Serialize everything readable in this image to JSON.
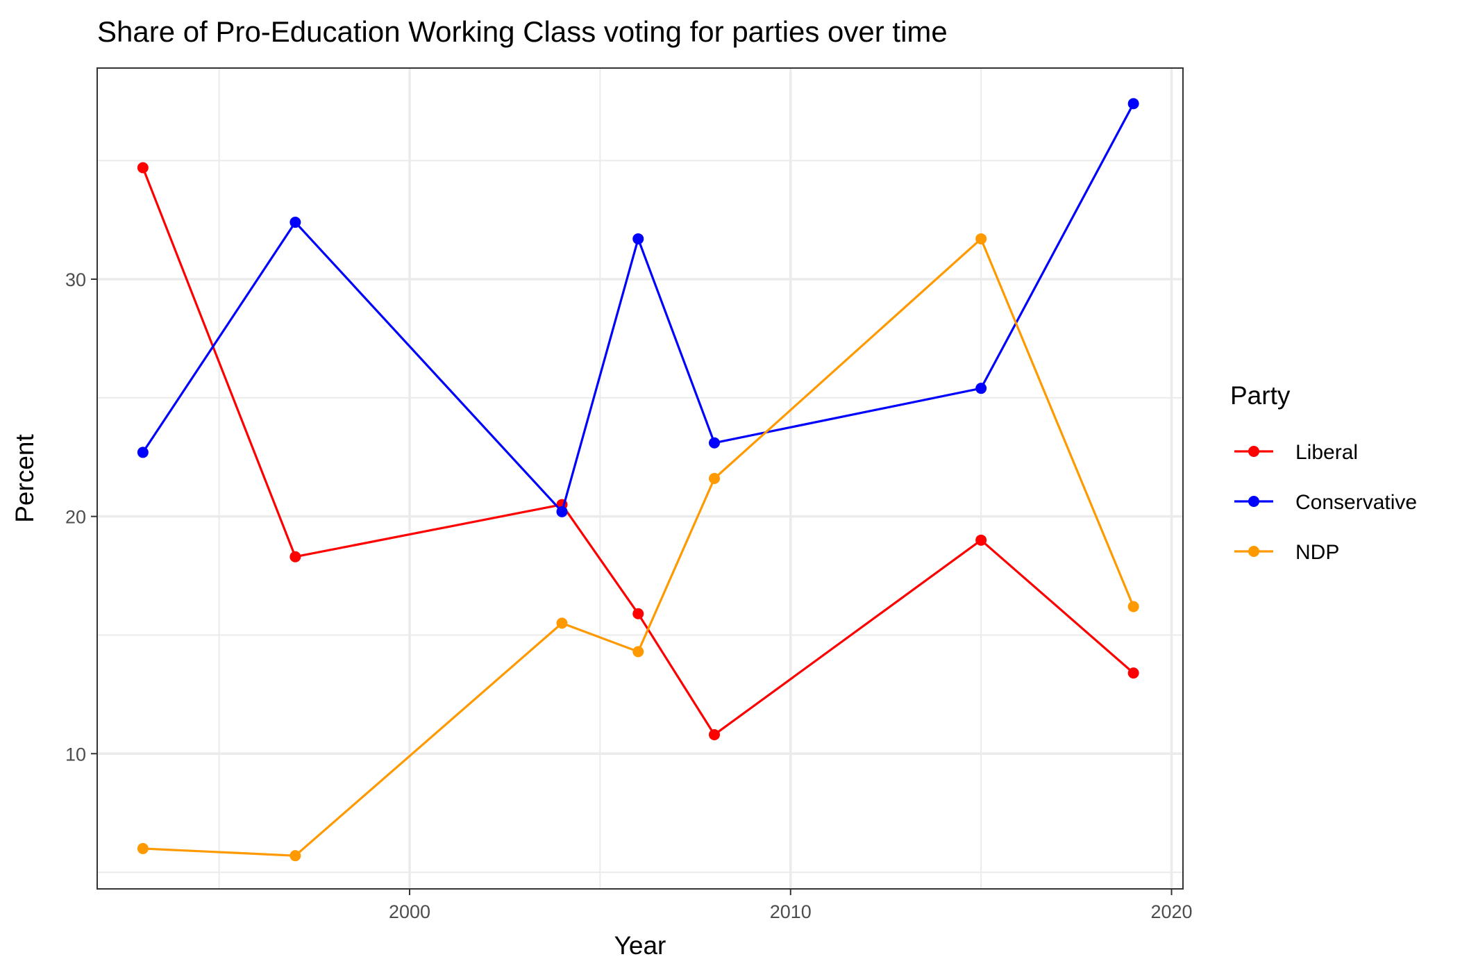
{
  "chart_data": {
    "type": "line",
    "title": "Share of Pro-Education Working Class voting for parties over time",
    "xlabel": "Year",
    "ylabel": "Percent",
    "x": [
      1993,
      1997,
      2004,
      2006,
      2008,
      2015,
      2019
    ],
    "xlim": [
      1991.8,
      2020.3
    ],
    "ylim": [
      4.3,
      38.9
    ],
    "xticks": [
      2000,
      2010,
      2020
    ],
    "xtick_labels": [
      "2000",
      "2010",
      "2020"
    ],
    "yticks": [
      10,
      20,
      30
    ],
    "ytick_labels": [
      "10",
      "20",
      "30"
    ],
    "x_minor_ticks": [
      1995,
      2005,
      2015
    ],
    "y_minor_ticks": [
      5,
      15,
      25,
      35
    ],
    "grid": true,
    "legend": {
      "title": "Party",
      "position": "right"
    },
    "series": [
      {
        "name": "Liberal",
        "color": "#ff0000",
        "values": [
          34.7,
          18.3,
          20.5,
          15.9,
          10.8,
          19.0,
          13.4
        ]
      },
      {
        "name": "Conservative",
        "color": "#0000ff",
        "values": [
          22.7,
          32.4,
          20.2,
          31.7,
          23.1,
          25.4,
          37.4
        ]
      },
      {
        "name": "NDP",
        "color": "#ff9900",
        "values": [
          6.0,
          5.7,
          15.5,
          14.3,
          21.6,
          31.7,
          16.2
        ]
      }
    ]
  }
}
